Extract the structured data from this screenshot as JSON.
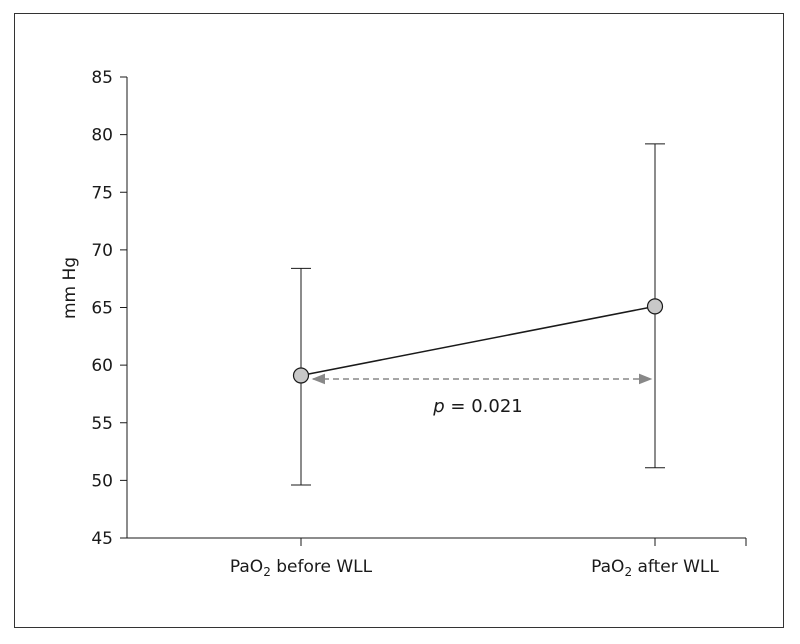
{
  "chart_data": {
    "type": "line",
    "title": "",
    "xlabel": "",
    "ylabel": "mm Hg",
    "ylim": [
      45,
      85
    ],
    "yticks": [
      45,
      50,
      55,
      60,
      65,
      70,
      75,
      80,
      85
    ],
    "grid": false,
    "categories": [
      {
        "base": "PaO",
        "sub": "2",
        "rest": " before WLL"
      },
      {
        "base": "PaO",
        "sub": "2",
        "rest": " after WLL"
      }
    ],
    "points": [
      {
        "mean": 59.1,
        "upper": 68.4,
        "lower": 49.6
      },
      {
        "mean": 65.1,
        "upper": 79.2,
        "lower": 51.1
      }
    ],
    "annotation": {
      "italic": "p",
      "text": " = 0.021",
      "y": 58.8
    },
    "colors": {
      "line": "#1a1a1a",
      "marker_fill": "#c8c8c8",
      "arrow": "#888888"
    }
  }
}
